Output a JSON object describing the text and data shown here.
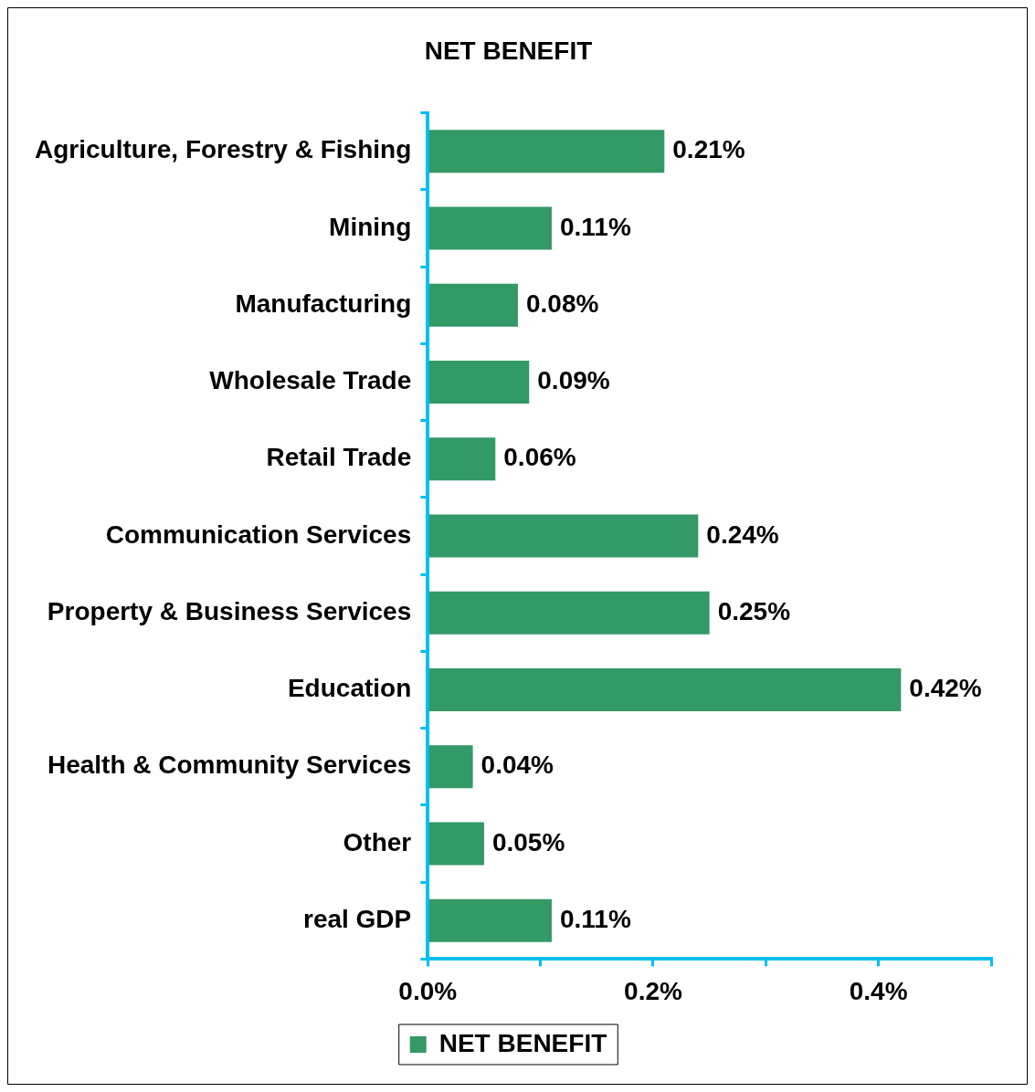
{
  "chart_data": {
    "type": "bar",
    "orientation": "horizontal",
    "title": "NET BENEFIT",
    "categories": [
      "Agriculture, Forestry & Fishing",
      "Mining",
      "Manufacturing",
      "Wholesale Trade",
      "Retail Trade",
      "Communication Services",
      "Property & Business Services",
      "Education",
      "Health & Community Services",
      "Other",
      "real GDP"
    ],
    "series": [
      {
        "name": "NET BENEFIT",
        "color": "#339966",
        "values": [
          0.21,
          0.11,
          0.08,
          0.09,
          0.06,
          0.24,
          0.25,
          0.42,
          0.04,
          0.05,
          0.11
        ],
        "value_labels": [
          "0.21%",
          "0.11%",
          "0.08%",
          "0.09%",
          "0.06%",
          "0.24%",
          "0.25%",
          "0.42%",
          "0.04%",
          "0.05%",
          "0.11%"
        ]
      }
    ],
    "xlim": [
      0,
      0.5
    ],
    "xticks": [
      {
        "value": 0,
        "label": "0.0%"
      },
      {
        "value": 0.1,
        "label": null
      },
      {
        "value": 0.2,
        "label": "0.2%"
      },
      {
        "value": 0.3,
        "label": null
      },
      {
        "value": 0.4,
        "label": "0.4%"
      },
      {
        "value": 0.5,
        "label": null
      }
    ],
    "grid": false,
    "legend": "bottom"
  }
}
